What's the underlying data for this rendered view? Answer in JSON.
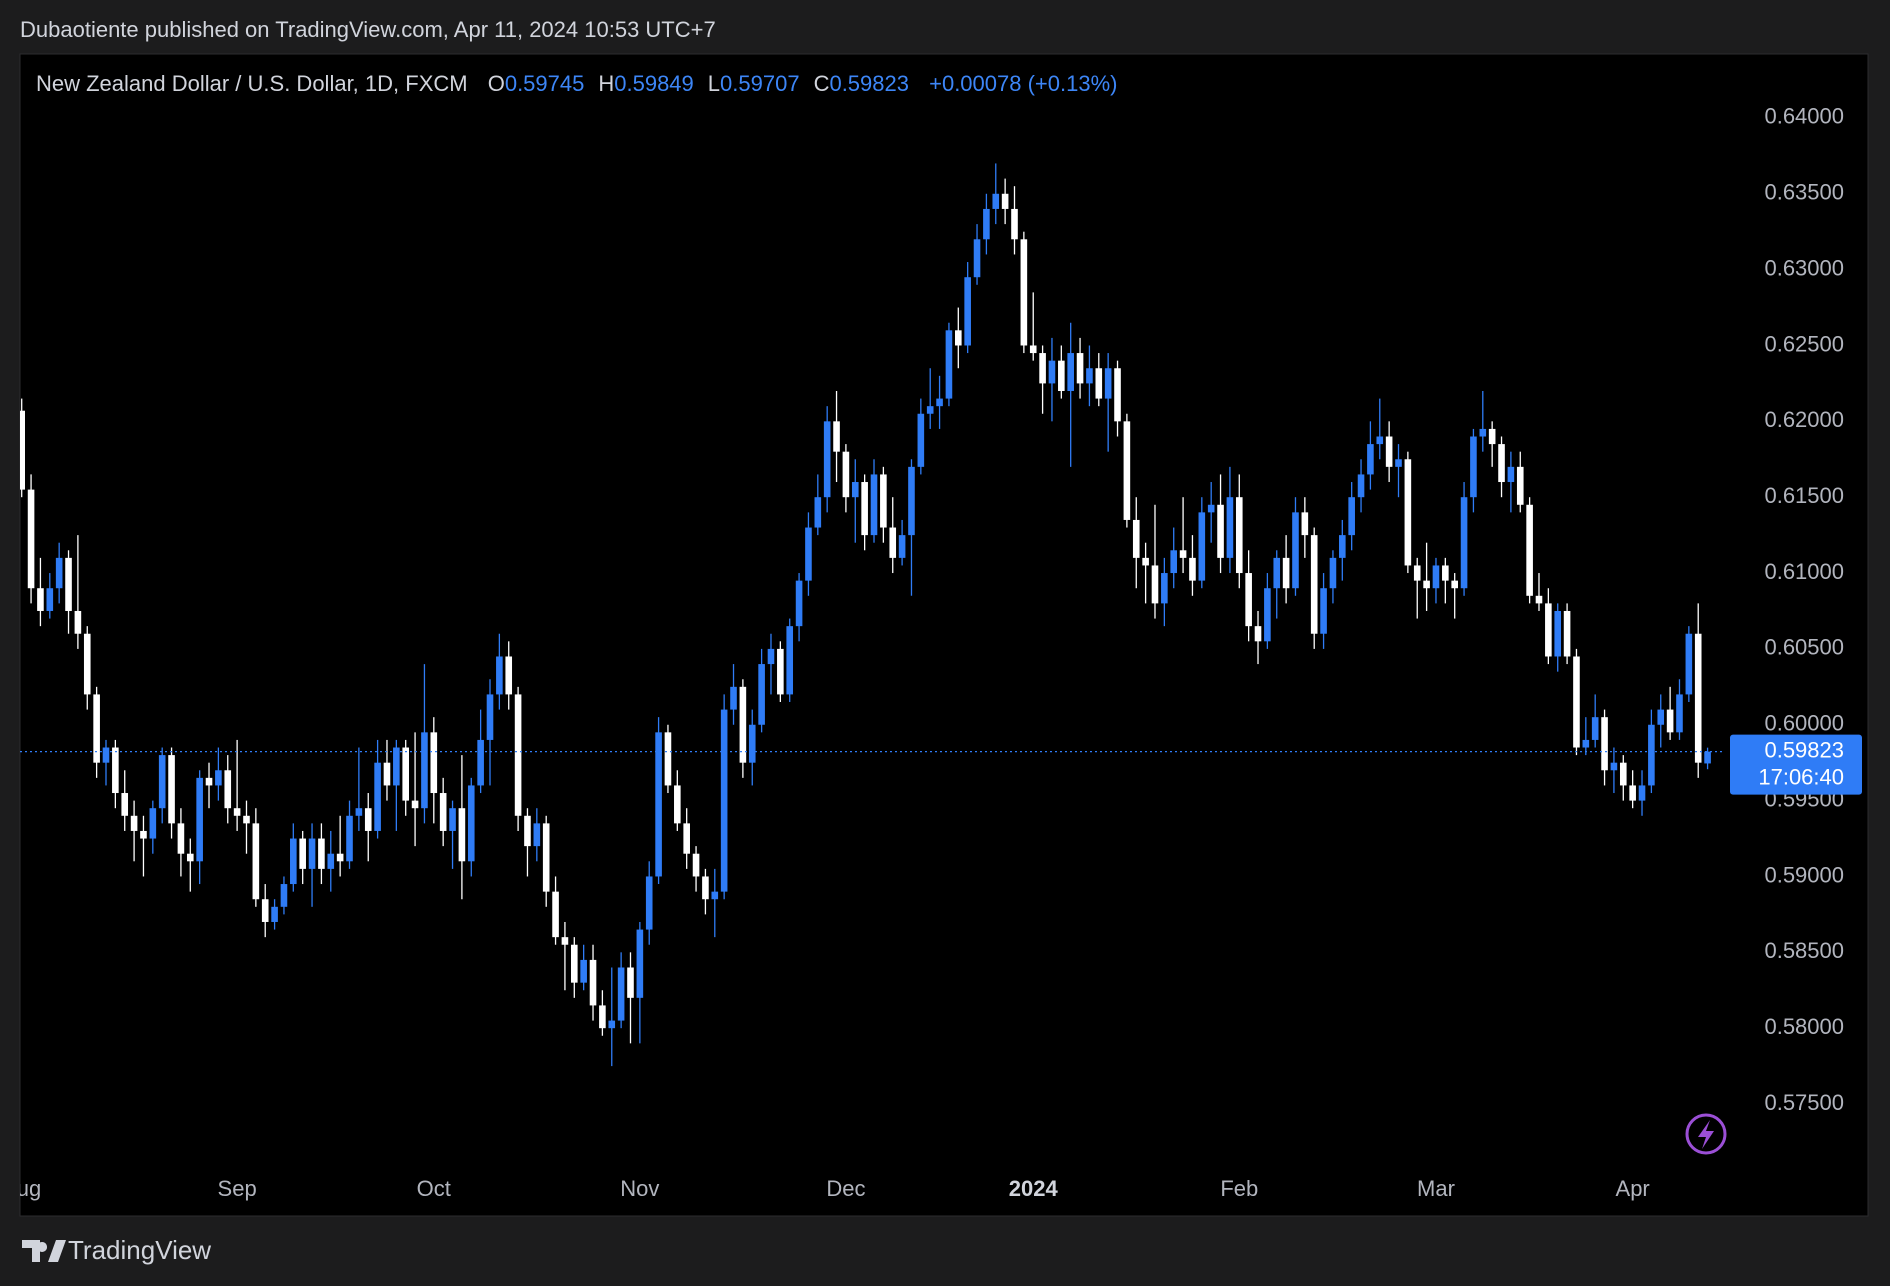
{
  "header": "Dubaotiente published on TradingView.com, Apr 11, 2024 10:53 UTC+7",
  "footer": {
    "brand": "TradingView"
  },
  "chart_data": {
    "type": "candlestick",
    "title": "New Zealand Dollar / U.S. Dollar, 1D, FXCM",
    "ohlc_legend": [
      {
        "label": "O",
        "value": "0.59745"
      },
      {
        "label": "H",
        "value": "0.59849"
      },
      {
        "label": "L",
        "value": "0.59707"
      },
      {
        "label": "C",
        "value": "0.59823"
      }
    ],
    "change": "+0.00078 (+0.13%)",
    "up_color": "#2f7cf6",
    "down_color": "#ffffff",
    "ylim": [
      0.5711,
      0.6442
    ],
    "yticks": [
      {
        "value": 0.575,
        "label": "0.57500"
      },
      {
        "value": 0.58,
        "label": "0.58000"
      },
      {
        "value": 0.585,
        "label": "0.58500"
      },
      {
        "value": 0.59,
        "label": "0.59000"
      },
      {
        "value": 0.595,
        "label": "0.59500"
      },
      {
        "value": 0.6,
        "label": "0.60000"
      },
      {
        "value": 0.605,
        "label": "0.60500"
      },
      {
        "value": 0.61,
        "label": "0.61000"
      },
      {
        "value": 0.615,
        "label": "0.61500"
      },
      {
        "value": 0.62,
        "label": "0.62000"
      },
      {
        "value": 0.625,
        "label": "0.62500"
      },
      {
        "value": 0.63,
        "label": "0.63000"
      },
      {
        "value": 0.635,
        "label": "0.63500"
      },
      {
        "value": 0.64,
        "label": "0.64000"
      }
    ],
    "last_price": {
      "value": 0.59823,
      "label": "0.59823"
    },
    "countdown": "17:06:40",
    "categories": [
      "Aug",
      null,
      null,
      null,
      null,
      null,
      null,
      null,
      null,
      null,
      null,
      null,
      null,
      null,
      null,
      null,
      null,
      null,
      null,
      null,
      null,
      null,
      null,
      "Sep",
      null,
      null,
      null,
      null,
      null,
      null,
      null,
      null,
      null,
      null,
      null,
      null,
      null,
      null,
      null,
      null,
      null,
      null,
      null,
      null,
      "Oct",
      null,
      null,
      null,
      null,
      null,
      null,
      null,
      null,
      null,
      null,
      null,
      null,
      null,
      null,
      null,
      null,
      null,
      null,
      null,
      null,
      null,
      "Nov",
      null,
      null,
      null,
      null,
      null,
      null,
      null,
      null,
      null,
      null,
      null,
      null,
      null,
      null,
      null,
      null,
      null,
      null,
      null,
      null,
      null,
      "Dec",
      null,
      null,
      null,
      null,
      null,
      null,
      null,
      null,
      null,
      null,
      null,
      null,
      null,
      null,
      null,
      null,
      null,
      null,
      null,
      "2024",
      null,
      null,
      null,
      null,
      null,
      null,
      null,
      null,
      null,
      null,
      null,
      null,
      null,
      null,
      null,
      null,
      null,
      null,
      null,
      null,
      null,
      "Feb",
      null,
      null,
      null,
      null,
      null,
      null,
      null,
      null,
      null,
      null,
      null,
      null,
      null,
      null,
      null,
      null,
      null,
      null,
      null,
      null,
      "Mar",
      null,
      null,
      null,
      null,
      null,
      null,
      null,
      null,
      null,
      null,
      null,
      null,
      null,
      null,
      null,
      null,
      null,
      null,
      null,
      null,
      "Apr",
      null,
      null,
      null,
      null,
      null,
      null,
      null,
      null
    ],
    "open": [
      0.6207,
      0.6155,
      0.609,
      0.6075,
      0.609,
      0.611,
      0.6075,
      0.606,
      0.602,
      0.5975,
      0.5985,
      0.5955,
      0.594,
      0.593,
      0.5925,
      0.5945,
      0.598,
      0.5935,
      0.5915,
      0.591,
      0.5965,
      0.596,
      0.597,
      0.5945,
      0.594,
      0.5935,
      0.5885,
      0.587,
      0.588,
      0.5895,
      0.5925,
      0.5905,
      0.5925,
      0.5905,
      0.5915,
      0.591,
      0.594,
      0.5945,
      0.593,
      0.5975,
      0.596,
      0.5985,
      0.595,
      0.5945,
      0.5995,
      0.5955,
      0.593,
      0.5945,
      0.591,
      0.596,
      0.599,
      0.602,
      0.6045,
      0.602,
      0.594,
      0.592,
      0.5935,
      0.589,
      0.586,
      0.5855,
      0.583,
      0.5845,
      0.5815,
      0.58,
      0.5805,
      0.584,
      0.582,
      0.5865,
      0.59,
      0.5995,
      0.596,
      0.5935,
      0.5915,
      0.59,
      0.5885,
      0.589,
      0.601,
      0.6025,
      0.5975,
      0.6,
      0.604,
      0.605,
      0.602,
      0.6065,
      0.6095,
      0.613,
      0.615,
      0.62,
      0.618,
      0.615,
      0.616,
      0.6125,
      0.6165,
      0.613,
      0.611,
      0.6125,
      0.617,
      0.6205,
      0.621,
      0.6215,
      0.626,
      0.625,
      0.6295,
      0.632,
      0.634,
      0.635,
      0.634,
      0.632,
      0.625,
      0.6245,
      0.6225,
      0.624,
      0.622,
      0.6245,
      0.6225,
      0.6235,
      0.6215,
      0.6235,
      0.62,
      0.6135,
      0.611,
      0.6105,
      0.608,
      0.61,
      0.6115,
      0.611,
      0.6095,
      0.614,
      0.6145,
      0.611,
      0.615,
      0.61,
      0.6065,
      0.6055,
      0.609,
      0.611,
      0.609,
      0.614,
      0.6125,
      0.606,
      0.609,
      0.611,
      0.6125,
      0.615,
      0.6165,
      0.6185,
      0.619,
      0.617,
      0.6175,
      0.6105,
      0.6095,
      0.609,
      0.6105,
      0.6095,
      0.609,
      0.615,
      0.619,
      0.6195,
      0.6185,
      0.616,
      0.617,
      0.6145,
      0.6085,
      0.608,
      0.6045,
      0.6075,
      0.6045,
      0.5985,
      0.599,
      0.6005,
      0.597,
      0.5975,
      0.596,
      0.595,
      0.596,
      0.6,
      0.601,
      0.5995,
      0.602,
      0.606,
      0.59745
    ],
    "high": [
      0.6215,
      0.6165,
      0.611,
      0.61,
      0.612,
      0.6115,
      0.6125,
      0.6065,
      0.6025,
      0.599,
      0.599,
      0.597,
      0.595,
      0.594,
      0.595,
      0.5985,
      0.5985,
      0.5945,
      0.5925,
      0.597,
      0.5975,
      0.5985,
      0.598,
      0.599,
      0.595,
      0.5945,
      0.5895,
      0.5885,
      0.59,
      0.5935,
      0.593,
      0.5935,
      0.5935,
      0.593,
      0.594,
      0.595,
      0.5985,
      0.5955,
      0.599,
      0.599,
      0.599,
      0.599,
      0.5995,
      0.604,
      0.6005,
      0.5965,
      0.595,
      0.598,
      0.5965,
      0.601,
      0.603,
      0.606,
      0.6055,
      0.6025,
      0.5945,
      0.5945,
      0.594,
      0.59,
      0.587,
      0.586,
      0.5855,
      0.5855,
      0.5825,
      0.584,
      0.585,
      0.585,
      0.587,
      0.591,
      0.6005,
      0.6,
      0.597,
      0.5945,
      0.592,
      0.5905,
      0.5905,
      0.602,
      0.604,
      0.603,
      0.601,
      0.605,
      0.606,
      0.6055,
      0.607,
      0.61,
      0.614,
      0.6165,
      0.621,
      0.622,
      0.6185,
      0.6175,
      0.6165,
      0.6175,
      0.617,
      0.615,
      0.6135,
      0.6175,
      0.6215,
      0.6235,
      0.623,
      0.6265,
      0.6275,
      0.6305,
      0.633,
      0.635,
      0.637,
      0.636,
      0.6355,
      0.6325,
      0.6285,
      0.625,
      0.6255,
      0.625,
      0.6265,
      0.6255,
      0.625,
      0.6245,
      0.6245,
      0.624,
      0.6205,
      0.615,
      0.612,
      0.6145,
      0.611,
      0.613,
      0.615,
      0.6125,
      0.615,
      0.616,
      0.6165,
      0.617,
      0.6165,
      0.6115,
      0.6075,
      0.61,
      0.6115,
      0.6125,
      0.615,
      0.615,
      0.613,
      0.61,
      0.6115,
      0.6135,
      0.616,
      0.6175,
      0.62,
      0.6215,
      0.62,
      0.6185,
      0.618,
      0.611,
      0.612,
      0.611,
      0.611,
      0.61,
      0.616,
      0.6195,
      0.622,
      0.62,
      0.619,
      0.618,
      0.618,
      0.615,
      0.61,
      0.609,
      0.608,
      0.608,
      0.605,
      0.6005,
      0.602,
      0.601,
      0.5985,
      0.598,
      0.597,
      0.597,
      0.601,
      0.602,
      0.6025,
      0.603,
      0.6065,
      0.608,
      0.59849
    ],
    "low": [
      0.615,
      0.608,
      0.6065,
      0.607,
      0.608,
      0.606,
      0.605,
      0.601,
      0.5965,
      0.596,
      0.5945,
      0.593,
      0.591,
      0.59,
      0.5915,
      0.5935,
      0.5925,
      0.59,
      0.589,
      0.5895,
      0.5945,
      0.595,
      0.5935,
      0.593,
      0.5915,
      0.588,
      0.586,
      0.5865,
      0.5875,
      0.589,
      0.5895,
      0.588,
      0.5895,
      0.589,
      0.59,
      0.5905,
      0.593,
      0.591,
      0.5925,
      0.595,
      0.593,
      0.594,
      0.592,
      0.5935,
      0.5935,
      0.592,
      0.5905,
      0.5885,
      0.59,
      0.5955,
      0.596,
      0.601,
      0.601,
      0.593,
      0.59,
      0.591,
      0.588,
      0.5855,
      0.5825,
      0.582,
      0.5825,
      0.5805,
      0.5795,
      0.5775,
      0.58,
      0.579,
      0.579,
      0.5855,
      0.5895,
      0.5955,
      0.593,
      0.5905,
      0.589,
      0.5875,
      0.586,
      0.5885,
      0.6,
      0.5965,
      0.596,
      0.5995,
      0.602,
      0.6015,
      0.6015,
      0.6055,
      0.6085,
      0.6125,
      0.614,
      0.616,
      0.614,
      0.612,
      0.6115,
      0.612,
      0.612,
      0.61,
      0.6105,
      0.6085,
      0.6165,
      0.6195,
      0.6195,
      0.621,
      0.6235,
      0.6245,
      0.629,
      0.631,
      0.633,
      0.633,
      0.631,
      0.6245,
      0.624,
      0.6205,
      0.62,
      0.6215,
      0.617,
      0.6215,
      0.621,
      0.621,
      0.618,
      0.619,
      0.613,
      0.609,
      0.608,
      0.607,
      0.6065,
      0.609,
      0.61,
      0.6085,
      0.609,
      0.612,
      0.61,
      0.61,
      0.609,
      0.6055,
      0.604,
      0.605,
      0.607,
      0.608,
      0.6085,
      0.611,
      0.605,
      0.605,
      0.608,
      0.6095,
      0.6115,
      0.614,
      0.6155,
      0.6175,
      0.616,
      0.615,
      0.61,
      0.607,
      0.6075,
      0.608,
      0.608,
      0.607,
      0.6085,
      0.614,
      0.618,
      0.617,
      0.615,
      0.614,
      0.614,
      0.608,
      0.6075,
      0.604,
      0.6035,
      0.604,
      0.598,
      0.598,
      0.5985,
      0.596,
      0.5955,
      0.595,
      0.5945,
      0.594,
      0.5955,
      0.5985,
      0.599,
      0.599,
      0.6015,
      0.5965,
      0.59707
    ],
    "close": [
      0.6155,
      0.609,
      0.6075,
      0.609,
      0.611,
      0.6075,
      0.606,
      0.602,
      0.5975,
      0.5985,
      0.5955,
      0.594,
      0.593,
      0.5925,
      0.5945,
      0.598,
      0.5935,
      0.5915,
      0.591,
      0.5965,
      0.596,
      0.597,
      0.5945,
      0.594,
      0.5935,
      0.5885,
      0.587,
      0.588,
      0.5895,
      0.5925,
      0.5905,
      0.5925,
      0.5905,
      0.5915,
      0.591,
      0.594,
      0.5945,
      0.593,
      0.5975,
      0.596,
      0.5985,
      0.595,
      0.5945,
      0.5995,
      0.5955,
      0.593,
      0.5945,
      0.591,
      0.596,
      0.599,
      0.602,
      0.6045,
      0.602,
      0.594,
      0.592,
      0.5935,
      0.589,
      0.586,
      0.5855,
      0.583,
      0.5845,
      0.5815,
      0.58,
      0.5805,
      0.584,
      0.582,
      0.5865,
      0.59,
      0.5995,
      0.596,
      0.5935,
      0.5915,
      0.59,
      0.5885,
      0.589,
      0.601,
      0.6025,
      0.5975,
      0.6,
      0.604,
      0.605,
      0.602,
      0.6065,
      0.6095,
      0.613,
      0.615,
      0.62,
      0.618,
      0.615,
      0.616,
      0.6125,
      0.6165,
      0.613,
      0.611,
      0.6125,
      0.617,
      0.6205,
      0.621,
      0.6215,
      0.626,
      0.625,
      0.6295,
      0.632,
      0.634,
      0.635,
      0.634,
      0.632,
      0.625,
      0.6245,
      0.6225,
      0.624,
      0.622,
      0.6245,
      0.6225,
      0.6235,
      0.6215,
      0.6235,
      0.62,
      0.6135,
      0.611,
      0.6105,
      0.608,
      0.61,
      0.6115,
      0.611,
      0.6095,
      0.614,
      0.6145,
      0.611,
      0.615,
      0.61,
      0.6065,
      0.6055,
      0.609,
      0.611,
      0.609,
      0.614,
      0.6125,
      0.606,
      0.609,
      0.611,
      0.6125,
      0.615,
      0.6165,
      0.6185,
      0.619,
      0.617,
      0.6175,
      0.6105,
      0.6095,
      0.609,
      0.6105,
      0.6095,
      0.609,
      0.615,
      0.619,
      0.6195,
      0.6185,
      0.616,
      0.617,
      0.6145,
      0.6085,
      0.608,
      0.6045,
      0.6075,
      0.6045,
      0.5985,
      0.599,
      0.6005,
      0.597,
      0.5975,
      0.596,
      0.595,
      0.596,
      0.6,
      0.601,
      0.5995,
      0.602,
      0.606,
      0.5975,
      0.59823
    ]
  }
}
